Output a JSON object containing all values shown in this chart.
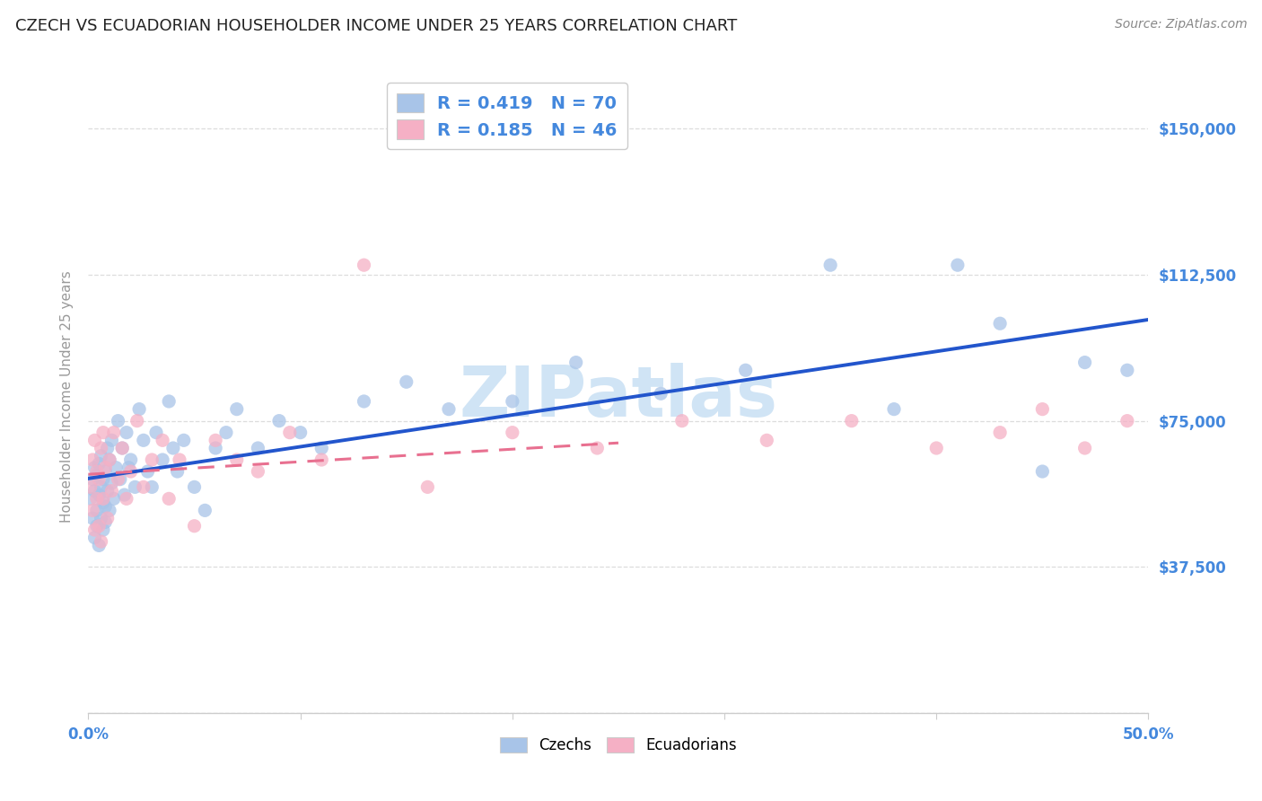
{
  "title": "CZECH VS ECUADORIAN HOUSEHOLDER INCOME UNDER 25 YEARS CORRELATION CHART",
  "source": "Source: ZipAtlas.com",
  "ylabel": "Householder Income Under 25 years",
  "xlim": [
    0.0,
    0.5
  ],
  "ylim": [
    0,
    162500
  ],
  "yticks": [
    0,
    37500,
    75000,
    112500,
    150000
  ],
  "ytick_labels": [
    "",
    "$37,500",
    "$75,000",
    "$112,500",
    "$150,000"
  ],
  "legend_r1": "0.419",
  "legend_n1": "70",
  "legend_r2": "0.185",
  "legend_n2": "46",
  "legend_czechs": "Czechs",
  "legend_ecuadorians": "Ecuadorians",
  "czech_scatter_color": "#a8c4e8",
  "ecuadorian_scatter_color": "#f5b0c5",
  "czech_line_color": "#2255cc",
  "ecuadorian_line_color": "#e87090",
  "axis_label_color": "#4488dd",
  "watermark_color": "#d0e4f5",
  "title_color": "#222222",
  "source_color": "#888888",
  "background_color": "#ffffff",
  "grid_color": "#dddddd",
  "czechs_x": [
    0.001,
    0.002,
    0.002,
    0.003,
    0.003,
    0.003,
    0.004,
    0.004,
    0.004,
    0.005,
    0.005,
    0.005,
    0.006,
    0.006,
    0.006,
    0.007,
    0.007,
    0.007,
    0.008,
    0.008,
    0.008,
    0.009,
    0.009,
    0.01,
    0.01,
    0.011,
    0.011,
    0.012,
    0.013,
    0.014,
    0.015,
    0.016,
    0.017,
    0.018,
    0.019,
    0.02,
    0.022,
    0.024,
    0.026,
    0.028,
    0.03,
    0.032,
    0.035,
    0.038,
    0.04,
    0.042,
    0.045,
    0.05,
    0.055,
    0.06,
    0.065,
    0.07,
    0.08,
    0.09,
    0.1,
    0.11,
    0.13,
    0.15,
    0.17,
    0.2,
    0.23,
    0.27,
    0.31,
    0.35,
    0.38,
    0.41,
    0.43,
    0.45,
    0.47,
    0.49
  ],
  "czechs_y": [
    55000,
    50000,
    60000,
    45000,
    57000,
    63000,
    52000,
    61000,
    48000,
    56000,
    64000,
    43000,
    58000,
    50000,
    66000,
    54000,
    47000,
    60000,
    53000,
    62000,
    49000,
    57000,
    68000,
    52000,
    65000,
    59000,
    70000,
    55000,
    63000,
    75000,
    60000,
    68000,
    56000,
    72000,
    63000,
    65000,
    58000,
    78000,
    70000,
    62000,
    58000,
    72000,
    65000,
    80000,
    68000,
    62000,
    70000,
    58000,
    52000,
    68000,
    72000,
    78000,
    68000,
    75000,
    72000,
    68000,
    80000,
    85000,
    78000,
    80000,
    90000,
    82000,
    88000,
    115000,
    78000,
    115000,
    100000,
    62000,
    90000,
    88000
  ],
  "ecuadorians_x": [
    0.001,
    0.002,
    0.002,
    0.003,
    0.003,
    0.004,
    0.004,
    0.005,
    0.005,
    0.006,
    0.006,
    0.007,
    0.007,
    0.008,
    0.009,
    0.01,
    0.011,
    0.012,
    0.014,
    0.016,
    0.018,
    0.02,
    0.023,
    0.026,
    0.03,
    0.035,
    0.038,
    0.043,
    0.05,
    0.06,
    0.07,
    0.08,
    0.095,
    0.11,
    0.13,
    0.16,
    0.2,
    0.24,
    0.28,
    0.32,
    0.36,
    0.4,
    0.43,
    0.45,
    0.47,
    0.49
  ],
  "ecuadorians_y": [
    58000,
    52000,
    65000,
    47000,
    70000,
    55000,
    62000,
    48000,
    60000,
    68000,
    44000,
    72000,
    55000,
    63000,
    50000,
    65000,
    57000,
    72000,
    60000,
    68000,
    55000,
    62000,
    75000,
    58000,
    65000,
    70000,
    55000,
    65000,
    48000,
    70000,
    65000,
    62000,
    72000,
    65000,
    115000,
    58000,
    72000,
    68000,
    75000,
    70000,
    75000,
    68000,
    72000,
    78000,
    68000,
    75000
  ]
}
